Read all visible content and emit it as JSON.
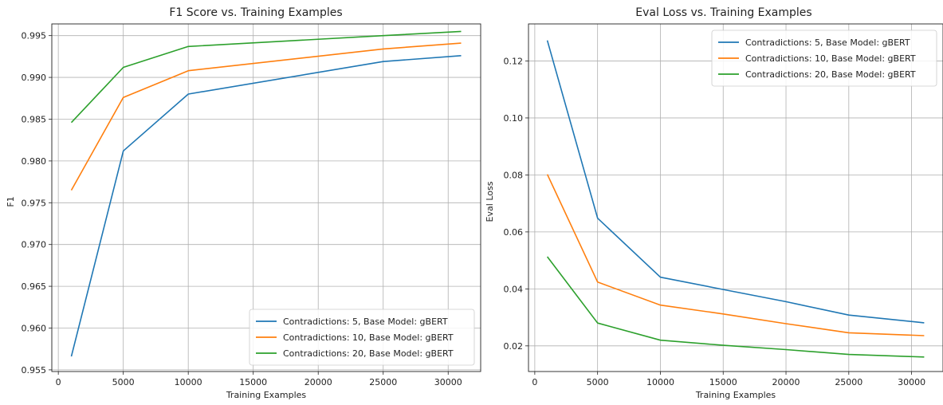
{
  "chart_data": [
    {
      "type": "line",
      "title": "F1 Score vs. Training Examples",
      "xlabel": "Training Examples",
      "ylabel": "F1",
      "xlim": [
        -500,
        32500
      ],
      "ylim": [
        0.9548,
        0.9964
      ],
      "xticks": [
        0,
        5000,
        10000,
        15000,
        20000,
        25000,
        30000
      ],
      "xtick_labels": [
        "0",
        "5000",
        "10000",
        "15000",
        "20000",
        "25000",
        "30000"
      ],
      "yticks": [
        0.955,
        0.96,
        0.965,
        0.97,
        0.975,
        0.98,
        0.985,
        0.99,
        0.995
      ],
      "ytick_labels": [
        "0.955",
        "0.960",
        "0.965",
        "0.970",
        "0.975",
        "0.980",
        "0.985",
        "0.990",
        "0.995"
      ],
      "grid": true,
      "legend_position": "bottom-right",
      "x": [
        1000,
        5000,
        10000,
        25000,
        31000
      ],
      "series": [
        {
          "name": "Contradictions: 5, Base Model: gBERT",
          "color": "#1f77b4",
          "values": [
            0.9566,
            0.9812,
            0.988,
            0.9919,
            0.9926
          ]
        },
        {
          "name": "Contradictions: 10, Base Model: gBERT",
          "color": "#ff7f0e",
          "values": [
            0.9765,
            0.9876,
            0.9908,
            0.9934,
            0.9941
          ]
        },
        {
          "name": "Contradictions: 20, Base Model: gBERT",
          "color": "#2ca02c",
          "values": [
            0.9846,
            0.9912,
            0.9937,
            0.995,
            0.9955
          ]
        }
      ]
    },
    {
      "type": "line",
      "title": "Eval Loss vs. Training Examples",
      "xlabel": "Training Examples",
      "ylabel": "Eval Loss",
      "xlim": [
        -500,
        32500
      ],
      "ylim": [
        0.011,
        0.133
      ],
      "xticks": [
        0,
        5000,
        10000,
        15000,
        20000,
        25000,
        30000
      ],
      "xtick_labels": [
        "0",
        "5000",
        "10000",
        "15000",
        "20000",
        "25000",
        "30000"
      ],
      "yticks": [
        0.02,
        0.04,
        0.06,
        0.08,
        0.1,
        0.12
      ],
      "ytick_labels": [
        "0.02",
        "0.04",
        "0.06",
        "0.08",
        "0.10",
        "0.12"
      ],
      "grid": true,
      "legend_position": "top-right",
      "x": [
        1000,
        5000,
        10000,
        15000,
        20000,
        25000,
        31000
      ],
      "series": [
        {
          "name": "Contradictions: 5, Base Model: gBERT",
          "color": "#1f77b4",
          "values": [
            0.1272,
            0.0648,
            0.0441,
            0.0398,
            0.0355,
            0.0308,
            0.0281
          ]
        },
        {
          "name": "Contradictions: 10, Base Model: gBERT",
          "color": "#ff7f0e",
          "values": [
            0.0802,
            0.0424,
            0.0343,
            0.0312,
            0.0278,
            0.0246,
            0.0236
          ]
        },
        {
          "name": "Contradictions: 20, Base Model: gBERT",
          "color": "#2ca02c",
          "values": [
            0.0513,
            0.028,
            0.022,
            0.0202,
            0.0187,
            0.017,
            0.0161
          ]
        }
      ]
    }
  ]
}
